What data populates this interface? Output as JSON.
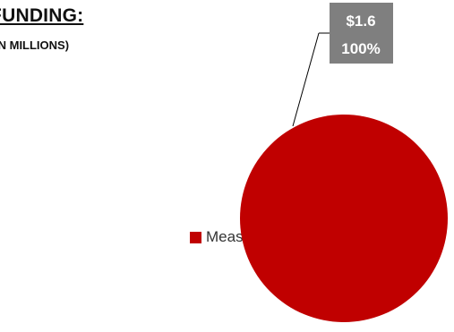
{
  "chart_data": {
    "type": "pie",
    "title": "T FUNDING:",
    "subtitle": "IN MILLIONS)",
    "categories": [
      "Measure H"
    ],
    "values": [
      1.6
    ],
    "data_labels": [
      {
        "value_text": "$1.6",
        "percent_text": "100%"
      }
    ],
    "legend": {
      "placement": "left",
      "entries": [
        "Measure H"
      ]
    },
    "colors": {
      "slice": "#C00000",
      "callout_bg": "#7F7F7F"
    }
  }
}
